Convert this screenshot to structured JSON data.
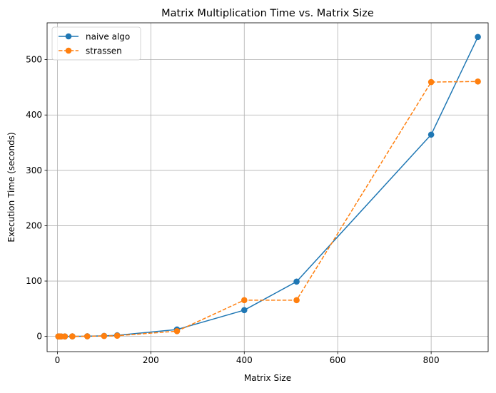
{
  "chart_data": {
    "type": "line",
    "title": "Matrix Multiplication Time vs. Matrix Size",
    "xlabel": "Matrix Size",
    "ylabel": "Execution Time (seconds)",
    "xlim": [
      -22,
      922
    ],
    "ylim": [
      -27.5,
      566.5
    ],
    "xticks": [
      0,
      200,
      400,
      600,
      800
    ],
    "yticks": [
      0,
      100,
      200,
      300,
      400,
      500
    ],
    "grid": true,
    "legend_position": "top-left",
    "series": [
      {
        "name": "naive algo",
        "color": "#1f77b4",
        "linestyle": "solid",
        "marker": "circle",
        "x": [
          2,
          4,
          8,
          16,
          32,
          64,
          100,
          128,
          256,
          400,
          512,
          800,
          900
        ],
        "y": [
          0,
          0,
          0,
          0,
          0.1,
          0.3,
          1.0,
          2.0,
          12.5,
          47.5,
          99.0,
          364.5,
          541.0
        ]
      },
      {
        "name": "strassen",
        "color": "#ff7f0e",
        "linestyle": "dashed",
        "marker": "circle",
        "x": [
          2,
          4,
          8,
          16,
          32,
          64,
          100,
          128,
          256,
          400,
          512,
          800,
          900
        ],
        "y": [
          0,
          0,
          0,
          0,
          0.1,
          0.2,
          0.8,
          1.2,
          9.5,
          65.5,
          65.5,
          459.5,
          460.5
        ]
      }
    ]
  }
}
